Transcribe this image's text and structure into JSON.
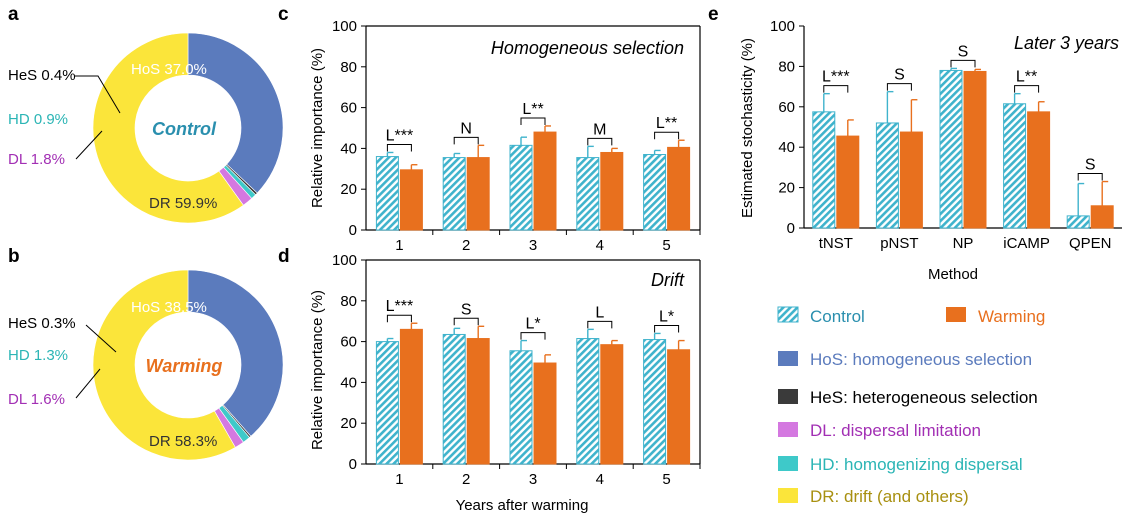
{
  "colors": {
    "HoS": "#5b7bbd",
    "HeS": "#3a3a3a",
    "DL": "#d478e0",
    "HD": "#3ec9c9",
    "DR": "#fbe53a",
    "control_stripe": "#3fb3cc",
    "warming": "#e8701e",
    "hd_text": "#2bb5b5",
    "dl_text": "#a22fb4",
    "hos_text": "#5b7bbd",
    "dr_text": "#a89010",
    "control_text": "#2a8fae"
  },
  "panels": {
    "a": "a",
    "b": "b",
    "c": "c",
    "d": "d",
    "e": "e"
  },
  "legend": {
    "control": "Control",
    "warming": "Warming",
    "processes": [
      {
        "key": "HoS",
        "label": "HoS: homogeneous selection"
      },
      {
        "key": "HeS",
        "label": "HeS: heterogeneous selection"
      },
      {
        "key": "DL",
        "label": "DL: dispersal limitation"
      },
      {
        "key": "HD",
        "label": "HD: homogenizing dispersal"
      },
      {
        "key": "DR",
        "label": "DR: drift (and others)"
      }
    ]
  },
  "chart_data": [
    {
      "type": "pie",
      "panel": "a",
      "center_label": "Control",
      "slices": [
        {
          "key": "HoS",
          "label": "HoS 37.0%",
          "value": 37.0
        },
        {
          "key": "HeS",
          "label": "HeS 0.4%",
          "value": 0.4
        },
        {
          "key": "HD",
          "label": "HD 0.9%",
          "value": 0.9
        },
        {
          "key": "DL",
          "label": "DL 1.8%",
          "value": 1.8
        },
        {
          "key": "DR",
          "label": "DR 59.9%",
          "value": 59.9
        }
      ]
    },
    {
      "type": "pie",
      "panel": "b",
      "center_label": "Warming",
      "slices": [
        {
          "key": "HoS",
          "label": "HoS 38.5%",
          "value": 38.5
        },
        {
          "key": "HeS",
          "label": "HeS 0.3%",
          "value": 0.3
        },
        {
          "key": "HD",
          "label": "HD 1.3%",
          "value": 1.3
        },
        {
          "key": "DL",
          "label": "DL 1.6%",
          "value": 1.6
        },
        {
          "key": "DR",
          "label": "DR 58.3%",
          "value": 58.3
        }
      ]
    },
    {
      "type": "bar",
      "panel": "c",
      "title": "Homogeneous selection",
      "ylabel": "Relative importance (%)",
      "xlabel": "",
      "ylim": [
        0,
        100
      ],
      "yticks": [
        0,
        20,
        40,
        60,
        80,
        100
      ],
      "categories": [
        "1",
        "2",
        "3",
        "4",
        "5"
      ],
      "series": [
        {
          "name": "Control",
          "values": [
            36,
            35.5,
            41.5,
            35.5,
            37
          ],
          "errors": [
            2,
            2,
            4,
            5.5,
            2
          ]
        },
        {
          "name": "Warming",
          "values": [
            29.5,
            35.5,
            48,
            38,
            40.5
          ],
          "errors": [
            2.5,
            6,
            3,
            2,
            3.5
          ]
        }
      ],
      "significance": [
        "L***",
        "N",
        "L**",
        "M",
        "L**"
      ]
    },
    {
      "type": "bar",
      "panel": "d",
      "title": "Drift",
      "ylabel": "Relative importance (%)",
      "xlabel": "Years after warming",
      "ylim": [
        0,
        100
      ],
      "yticks": [
        0,
        20,
        40,
        60,
        80,
        100
      ],
      "categories": [
        "1",
        "2",
        "3",
        "4",
        "5"
      ],
      "series": [
        {
          "name": "Control",
          "values": [
            60,
            63.5,
            55.5,
            61.5,
            61
          ],
          "errors": [
            1.5,
            3,
            5,
            4.5,
            3
          ]
        },
        {
          "name": "Warming",
          "values": [
            66,
            61.5,
            49.5,
            58.5,
            56
          ],
          "errors": [
            3,
            6,
            4,
            2,
            4.5
          ]
        }
      ],
      "significance": [
        "L***",
        "S",
        "L*",
        "L",
        "L*"
      ]
    },
    {
      "type": "bar",
      "panel": "e",
      "title": "Later 3 years",
      "ylabel": "Estimated stochasticity (%)",
      "xlabel": "Method",
      "ylim": [
        0,
        100
      ],
      "yticks": [
        0,
        20,
        40,
        60,
        80,
        100
      ],
      "categories": [
        "tNST",
        "pNST",
        "NP",
        "iCAMP",
        "QPEN"
      ],
      "series": [
        {
          "name": "Control",
          "values": [
            57.5,
            52,
            78,
            61.5,
            6
          ],
          "errors": [
            9,
            15.5,
            1,
            5,
            16
          ]
        },
        {
          "name": "Warming",
          "values": [
            45.5,
            47.5,
            77.5,
            57.5,
            11
          ],
          "errors": [
            8,
            16,
            1,
            5,
            12
          ]
        }
      ],
      "significance": [
        "L***",
        "S",
        "S",
        "L**",
        "S"
      ]
    }
  ]
}
